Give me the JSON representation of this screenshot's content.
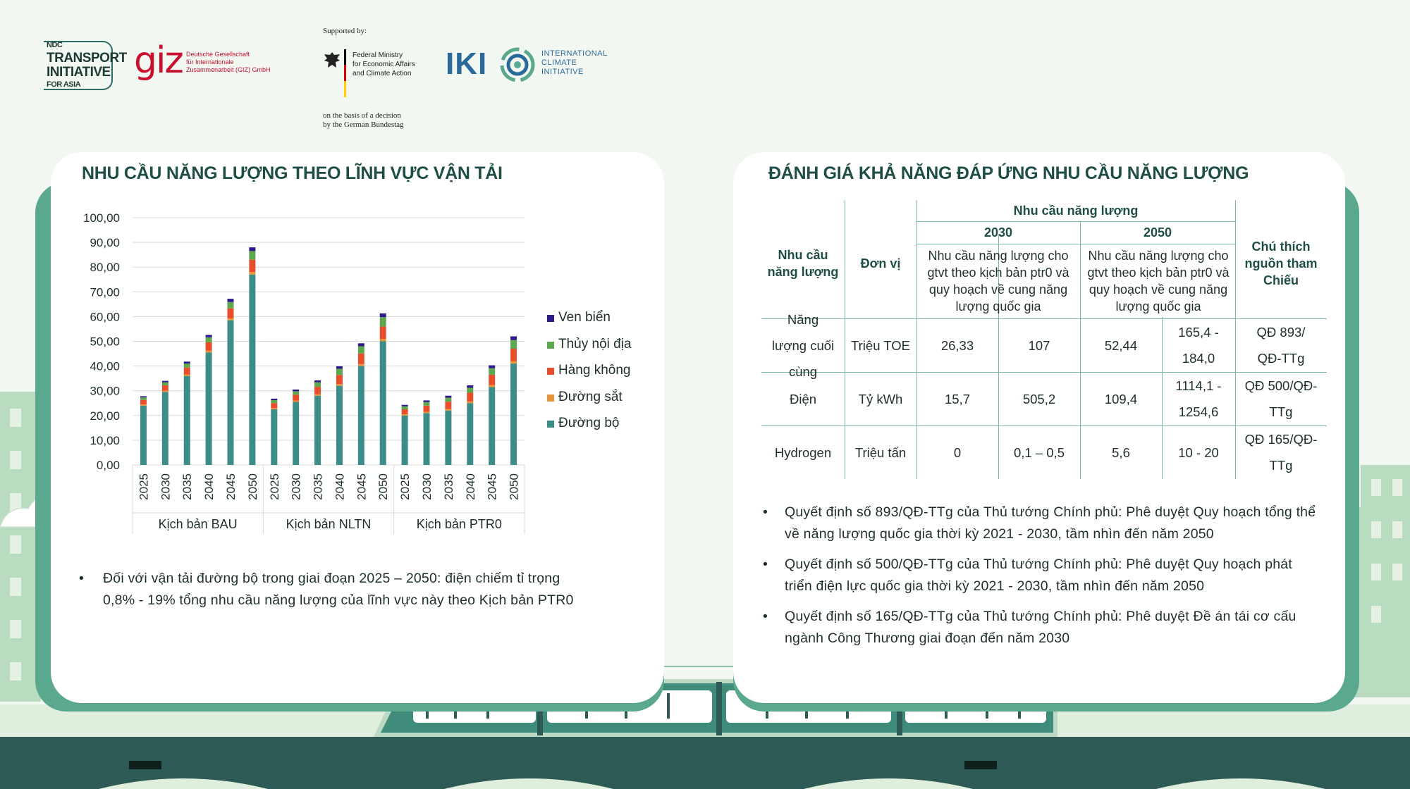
{
  "header": {
    "ndc_logo": [
      "NDC",
      "TRANSPORT",
      "INITIATIVE",
      "FOR ASIA"
    ],
    "giz_mark": "giz",
    "giz_text": "Deutsche Gesellschaft\nfür Internationale\nZusammenarbeit (GIZ) GmbH",
    "supported_by": "Supported by:",
    "bmwk_text": "Federal Ministry\nfor Economic Affairs\nand Climate Action",
    "decision_text": "on the basis of a decision\nby the German Bundestag",
    "iki_mark": "IKI",
    "iki_text": "INTERNATIONAL\nCLIMATE\nINITIATIVE"
  },
  "left_panel": {
    "title": "NHU CẦU NĂNG LƯỢNG THEO LĨNH VỰC VẬN TẢI",
    "bullet": "Đối với vận tải đường bộ trong giai đoạn 2025 – 2050: điện chiếm tỉ trọng 0,8% - 19% tổng nhu cầu năng lượng của lĩnh vực này theo Kịch bản PTR0"
  },
  "chart_data": {
    "type": "bar",
    "stacked": true,
    "title": "",
    "xlabel": "",
    "ylabel": "",
    "ylim": [
      0,
      100
    ],
    "yticks": [
      "0,00",
      "10,00",
      "20,00",
      "30,00",
      "40,00",
      "50,00",
      "60,00",
      "70,00",
      "80,00",
      "90,00",
      "100,00"
    ],
    "groups": [
      "Kịch bản BAU",
      "Kịch bản NLTN",
      "Kịch bản PTR0"
    ],
    "categories": [
      "2025",
      "2030",
      "2035",
      "2040",
      "2045",
      "2050",
      "2025",
      "2030",
      "2035",
      "2040",
      "2045",
      "2050",
      "2025",
      "2030",
      "2035",
      "2040",
      "2045",
      "2050"
    ],
    "series": [
      {
        "name": "Đường bộ",
        "color": "#3c8c88",
        "values": [
          24.0,
          29.5,
          36.0,
          45.5,
          58.5,
          77.0,
          22.5,
          25.5,
          28.0,
          32.0,
          40.0,
          50.0,
          20.0,
          21.0,
          22.0,
          25.0,
          31.5,
          41.0
        ]
      },
      {
        "name": "Đường sắt",
        "color": "#e8953a",
        "values": [
          0.5,
          0.5,
          0.6,
          0.7,
          0.8,
          1.0,
          0.5,
          0.5,
          0.6,
          0.7,
          0.8,
          1.0,
          0.5,
          0.5,
          0.6,
          0.7,
          0.8,
          1.0
        ]
      },
      {
        "name": "Hàng không",
        "color": "#e84e2c",
        "values": [
          1.8,
          2.2,
          2.8,
          3.4,
          4.0,
          5.0,
          2.0,
          2.4,
          3.0,
          3.7,
          4.3,
          5.0,
          2.0,
          2.5,
          3.0,
          3.5,
          4.2,
          5.0
        ]
      },
      {
        "name": "Thủy nội địa",
        "color": "#5da84e",
        "values": [
          1.0,
          1.2,
          1.6,
          2.0,
          2.6,
          3.5,
          1.2,
          1.4,
          1.8,
          2.5,
          2.9,
          3.8,
          1.2,
          1.4,
          1.6,
          2.0,
          2.6,
          3.5
        ]
      },
      {
        "name": "Ven biển",
        "color": "#2e1a8c",
        "values": [
          0.5,
          0.6,
          0.8,
          1.0,
          1.3,
          1.5,
          0.6,
          0.7,
          0.8,
          1.0,
          1.2,
          1.5,
          0.6,
          0.7,
          0.8,
          1.0,
          1.2,
          1.5
        ]
      }
    ],
    "legend": [
      "Ven biển",
      "Thủy nội địa",
      "Hàng không",
      "Đường sắt",
      "Đường bộ"
    ],
    "legend_position": "right",
    "grid": true
  },
  "right_panel": {
    "title": "ĐÁNH GIÁ KHẢ NĂNG ĐÁP ỨNG NHU CẦU NĂNG LƯỢNG",
    "table": {
      "col_need": "Nhu cầu năng lượng",
      "col_unit": "Đơn vị",
      "col_group": "Nhu cầu năng lượng",
      "year_a": "2030",
      "year_b": "2050",
      "col_note": "Chú thích nguồn tham Chiếu",
      "sub_a": "Nhu cầu năng lượng cho gtvt theo kịch bản ptr0 và quy hoạch về cung năng lượng quốc gia",
      "sub_b": "Nhu cầu năng lượng cho gtvt theo kịch bản ptr0 và quy hoạch về cung năng lượng quốc gia",
      "rows": [
        {
          "name": "Năng lượng cuối cùng",
          "unit": "Triệu TOE",
          "v1": "26,33",
          "v2": "107",
          "v3": "52,44",
          "v4": "165,4 - 184,0",
          "note": "QĐ 893/ QĐ-TTg"
        },
        {
          "name": "Điện",
          "unit": "Tỷ kWh",
          "v1": "15,7",
          "v2": "505,2",
          "v3": "109,4",
          "v4": "1114,1 - 1254,6",
          "note": "QĐ 500/QĐ-TTg"
        },
        {
          "name": "Hydrogen",
          "unit": "Triệu tấn",
          "v1": "0",
          "v2": "0,1 – 0,5",
          "v3": "5,6",
          "v4": "10 - 20",
          "note": "QĐ 165/QĐ-TTg"
        }
      ]
    },
    "bullets": [
      "Quyết định số 893/QĐ-TTg của Thủ tướng Chính phủ: Phê duyệt Quy hoạch tổng thể về năng lượng quốc gia thời kỳ 2021 - 2030, tầm nhìn đến năm 2050",
      "Quyết định số 500/QĐ-TTg của Thủ tướng Chính phủ: Phê duyệt Quy hoạch phát triển điện lực quốc gia thời kỳ 2021 - 2030, tầm nhìn đến năm 2050",
      "Quyết định số 165/QĐ-TTg của Thủ tướng Chính phủ: Phê duyệt Đề án tái cơ cấu ngành Công Thương giai đoạn đến năm 2030"
    ],
    "bullet_symbol": "•"
  },
  "colors": {
    "accent": "#5aa88e",
    "title": "#1f4e46",
    "bridge": "#2d5a55",
    "train": "#3f8c7a"
  }
}
